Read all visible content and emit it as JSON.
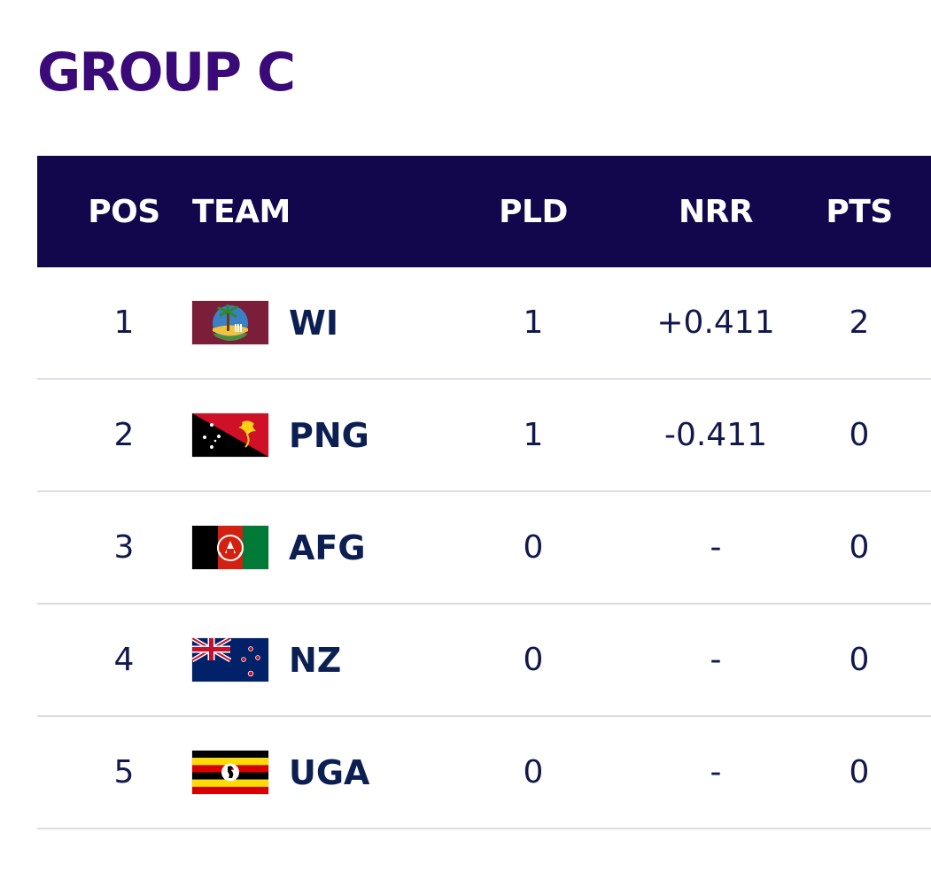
{
  "page": {
    "title": "GROUP C"
  },
  "colors": {
    "title": "#3a0a78",
    "header_bg": "#12064d",
    "header_text": "#ffffff",
    "body_text": "#12184d",
    "divider": "#dcdce4"
  },
  "table": {
    "headers": {
      "pos": "POS",
      "team": "TEAM",
      "pld": "PLD",
      "nrr": "NRR",
      "pts": "PTS"
    },
    "rows": [
      {
        "pos": "1",
        "team": "WI",
        "flag_icon": "west-indies-flag-icon",
        "pld": "1",
        "nrr": "+0.411",
        "pts": "2"
      },
      {
        "pos": "2",
        "team": "PNG",
        "flag_icon": "papua-new-guinea-flag-icon",
        "pld": "1",
        "nrr": "-0.411",
        "pts": "0"
      },
      {
        "pos": "3",
        "team": "AFG",
        "flag_icon": "afghanistan-flag-icon",
        "pld": "0",
        "nrr": "-",
        "pts": "0"
      },
      {
        "pos": "4",
        "team": "NZ",
        "flag_icon": "new-zealand-flag-icon",
        "pld": "0",
        "nrr": "-",
        "pts": "0"
      },
      {
        "pos": "5",
        "team": "UGA",
        "flag_icon": "uganda-flag-icon",
        "pld": "0",
        "nrr": "-",
        "pts": "0"
      }
    ]
  }
}
